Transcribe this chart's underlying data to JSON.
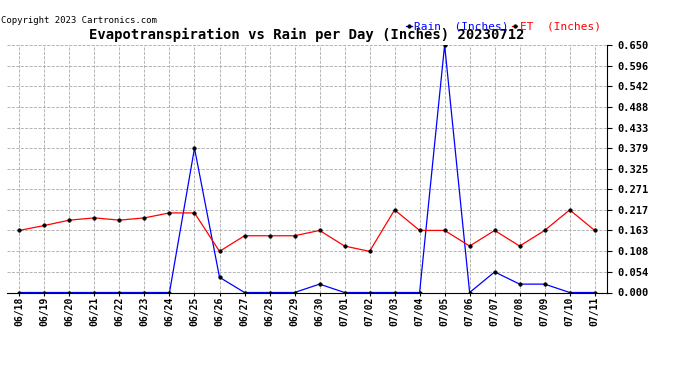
{
  "title": "Evapotranspiration vs Rain per Day (Inches) 20230712",
  "copyright": "Copyright 2023 Cartronics.com",
  "legend_rain": "Rain  (Inches)",
  "legend_et": "ET  (Inches)",
  "rain_color": "blue",
  "et_color": "red",
  "background_color": "#ffffff",
  "grid_color": "#aaaaaa",
  "ylim": [
    0.0,
    0.65
  ],
  "yticks": [
    0.0,
    0.054,
    0.108,
    0.163,
    0.217,
    0.271,
    0.325,
    0.379,
    0.433,
    0.488,
    0.542,
    0.596,
    0.65
  ],
  "dates": [
    "06/18",
    "06/19",
    "06/20",
    "06/21",
    "06/22",
    "06/23",
    "06/24",
    "06/25",
    "06/26",
    "06/27",
    "06/28",
    "06/29",
    "06/30",
    "07/01",
    "07/02",
    "07/03",
    "07/04",
    "07/05",
    "07/06",
    "07/07",
    "07/08",
    "07/09",
    "07/10",
    "07/11"
  ],
  "rain": [
    0.0,
    0.0,
    0.0,
    0.0,
    0.0,
    0.0,
    0.0,
    0.379,
    0.04,
    0.0,
    0.0,
    0.0,
    0.022,
    0.0,
    0.0,
    0.0,
    0.0,
    0.65,
    0.0,
    0.054,
    0.022,
    0.022,
    0.0,
    0.0
  ],
  "et": [
    0.163,
    0.176,
    0.19,
    0.196,
    0.19,
    0.196,
    0.209,
    0.209,
    0.108,
    0.149,
    0.149,
    0.149,
    0.163,
    0.122,
    0.108,
    0.217,
    0.163,
    0.163,
    0.122,
    0.163,
    0.122,
    0.163,
    0.217,
    0.163
  ],
  "title_fontsize": 10,
  "copyright_fontsize": 6.5,
  "tick_fontsize": 7,
  "legend_fontsize": 8,
  "ytick_fontsize": 7.5
}
